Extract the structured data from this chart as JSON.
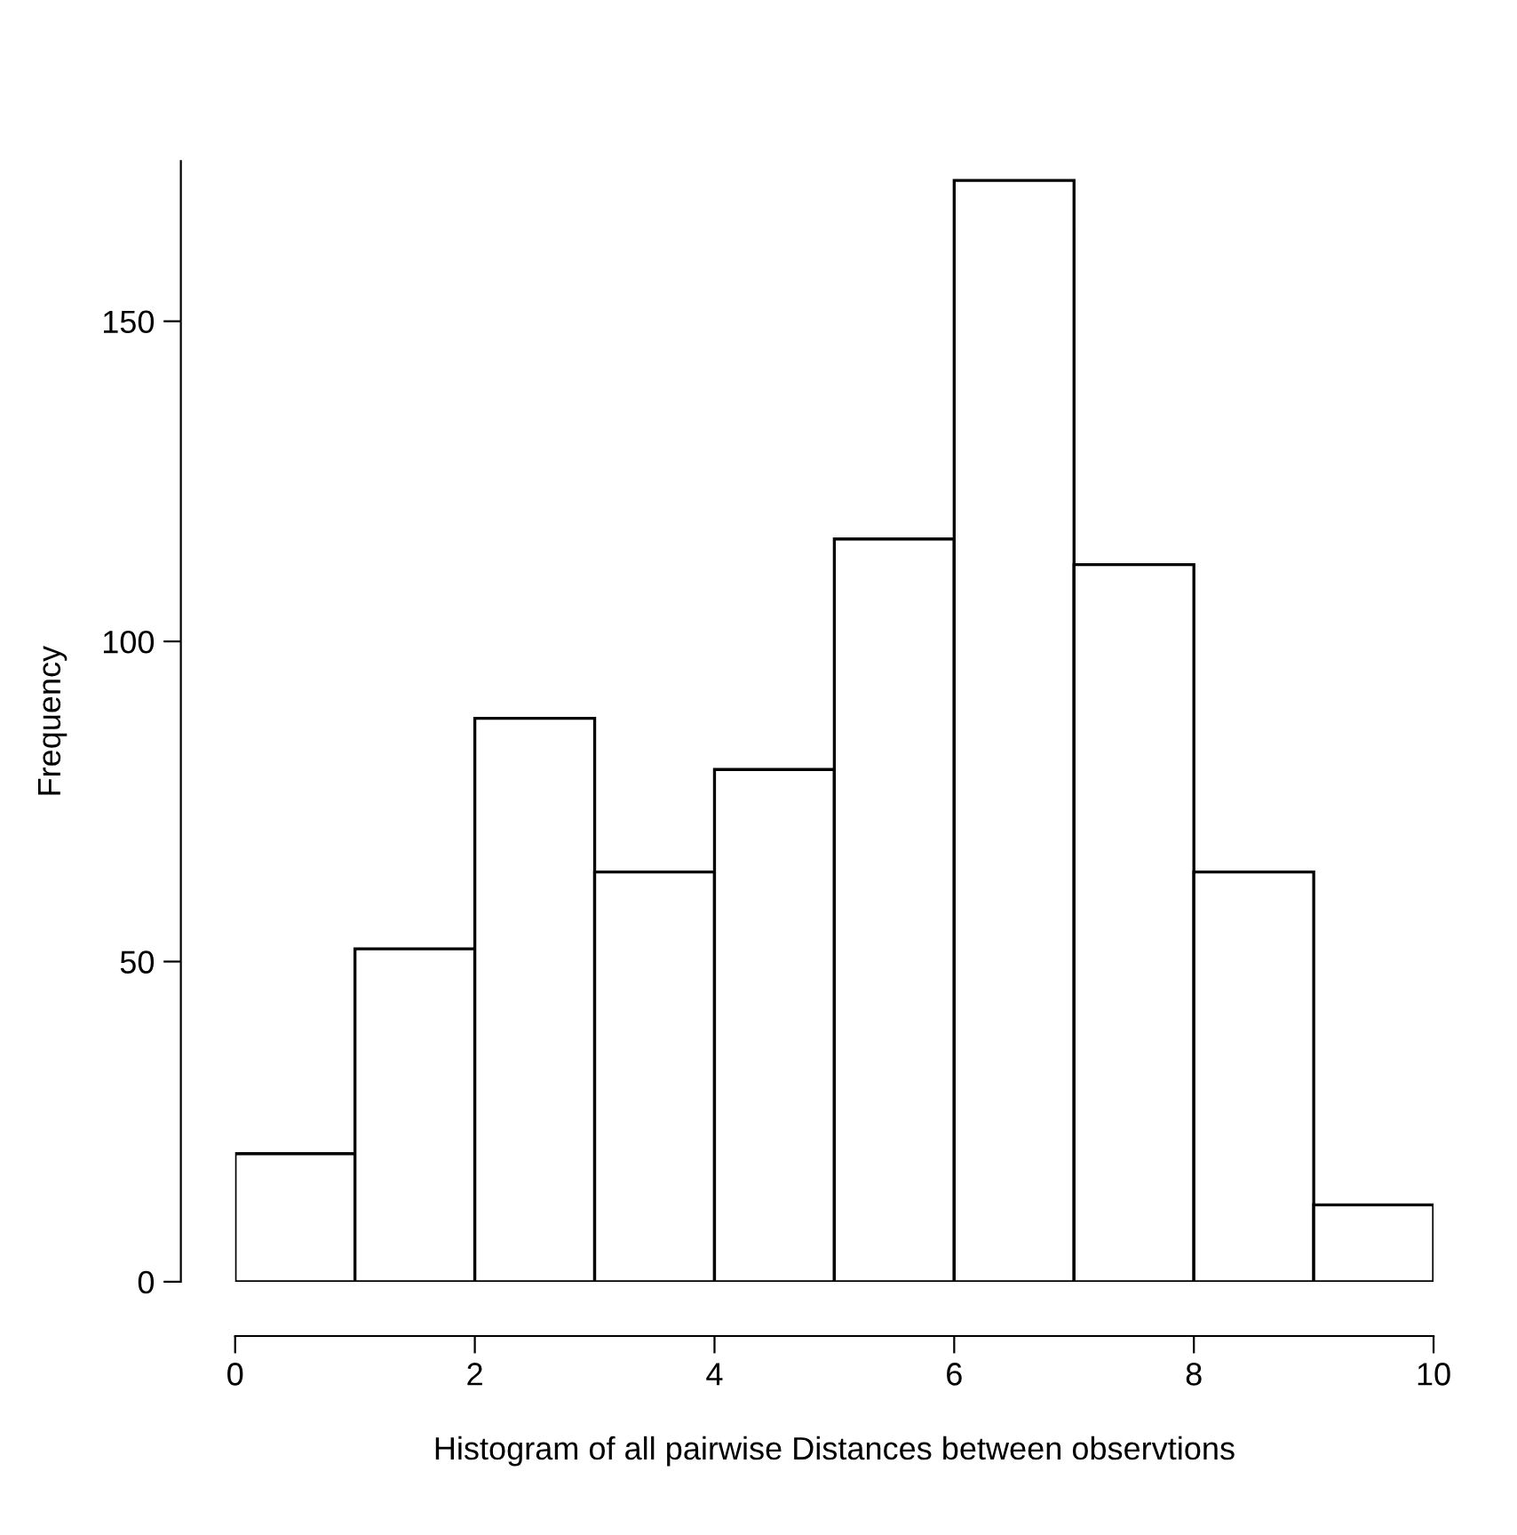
{
  "chart_data": {
    "type": "histogram",
    "xlabel": "Histogram of all pairwise Distances between observtions",
    "ylabel": "Frequency",
    "bins": [
      0,
      1,
      2,
      3,
      4,
      5,
      6,
      7,
      8,
      9,
      10
    ],
    "values": [
      20,
      52,
      88,
      64,
      80,
      116,
      172,
      112,
      64,
      12
    ],
    "color": "#ffffff",
    "xlim": [
      0,
      10
    ],
    "xticks": [
      0,
      2,
      4,
      6,
      8,
      10
    ],
    "ylim": [
      0,
      175
    ],
    "yticks": [
      0,
      50,
      100,
      150
    ],
    "grid": false
  }
}
